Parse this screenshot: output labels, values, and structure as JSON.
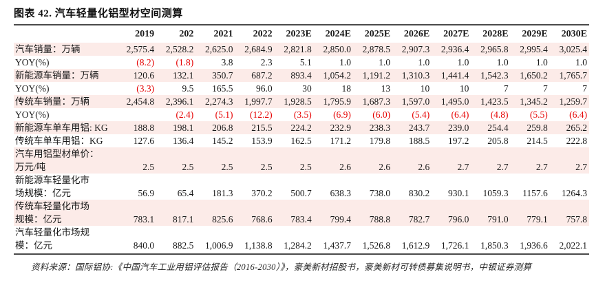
{
  "title": "图表 42. 汽车轻量化铝型材空间测算",
  "source": "资料来源：国际铝协:《中国汽车工业用铝评估报告（2016-2030）》，豪美新材招股书，豪美新材可转债募集说明书，中银证券测算",
  "colors": {
    "row_shade": "#fcebe8",
    "negative_red": "#e60000",
    "text": "#1a1a1a",
    "rule": "#4a4a4a"
  },
  "table": {
    "label_header": "",
    "columns": [
      "2019",
      "202",
      "2021",
      "2022",
      "2023E",
      "2024E",
      "2025E",
      "2026E",
      "2027E",
      "2028E",
      "2029E",
      "2030E"
    ],
    "rows": [
      {
        "label": "汽车销量：万辆",
        "values": [
          "2,575.4",
          "2,528.2",
          "2,625.0",
          "2,684.9",
          "2,821.8",
          "2,850.0",
          "2,878.5",
          "2,907.3",
          "2,936.4",
          "2,965.8",
          "2,995.4",
          "3,025.4"
        ]
      },
      {
        "label": "YOY(%)",
        "values": [
          "(8.2)",
          "(1.8)",
          "3.8",
          "2.3",
          "5.1",
          "1.0",
          "1.0",
          "1.0",
          "1.0",
          "1.0",
          "1.0",
          "1.0"
        ]
      },
      {
        "label": "新能源车销量：万辆",
        "values": [
          "120.6",
          "132.1",
          "350.7",
          "687.2",
          "893.4",
          "1,054.2",
          "1,191.2",
          "1,310.3",
          "1,441.4",
          "1,542.3",
          "1,650.2",
          "1,765.7"
        ]
      },
      {
        "label": "YOY(%)",
        "values": [
          "(3.3)",
          "9.5",
          "165.5",
          "96.0",
          "30",
          "18",
          "13",
          "10",
          "10",
          "7",
          "7",
          "7"
        ]
      },
      {
        "label": "传统车销量：万辆",
        "values": [
          "2,454.8",
          "2,396.1",
          "2,274.3",
          "1,997.7",
          "1,928.5",
          "1,795.9",
          "1,687.3",
          "1,597.0",
          "1,495.0",
          "1,423.5",
          "1,345.2",
          "1,259.7"
        ]
      },
      {
        "label": "YOY(%)",
        "values": [
          "",
          "(2.4)",
          "(5.1)",
          "(12.2)",
          "(3.5)",
          "(6.9)",
          "(6.0)",
          "(5.4)",
          "(6.4)",
          "(4.8)",
          "(5.5)",
          "(6.4)"
        ]
      },
      {
        "label": "新能源车单车用铝: KG",
        "values": [
          "188.8",
          "198.1",
          "206.8",
          "215.5",
          "224.2",
          "232.9",
          "238.3",
          "243.7",
          "239.0",
          "254.4",
          "259.8",
          "265.2"
        ]
      },
      {
        "label": "传统车单车用铝：KG",
        "values": [
          "127.6",
          "136.4",
          "145.2",
          "153.9",
          "162.5",
          "171.2",
          "179.8",
          "188.5",
          "197.2",
          "205.8",
          "214.5",
          "222.8"
        ]
      },
      {
        "label": "汽车用铝型材单价：\n万元/吨",
        "values": [
          "2.5",
          "2.5",
          "2.5",
          "2.5",
          "2.5",
          "2.6",
          "2.6",
          "2.6",
          "2.7",
          "2.7",
          "2.7",
          "2.7"
        ]
      },
      {
        "label": "新能源车轻量化市\n场规模：亿元",
        "values": [
          "56.9",
          "65.4",
          "181.3",
          "370.2",
          "500.7",
          "638.3",
          "738.0",
          "830.2",
          "930.1",
          "1059.3",
          "1157.6",
          "1264.3"
        ]
      },
      {
        "label": "传统车轻量化市场\n规模：亿元",
        "values": [
          "783.1",
          "817.1",
          "825.6",
          "768.6",
          "783.4",
          "799.4",
          "788.8",
          "782.7",
          "796.0",
          "791.0",
          "779.1",
          "757.8"
        ]
      },
      {
        "label": "汽车轻量化市场规\n模：亿元",
        "values": [
          "840.0",
          "882.5",
          "1,006.9",
          "1,138.8",
          "1,284.2",
          "1,437.7",
          "1,526.8",
          "1,612.9",
          "1,726.1",
          "1,850.3",
          "1,936.6",
          "2,022.1"
        ]
      }
    ]
  }
}
